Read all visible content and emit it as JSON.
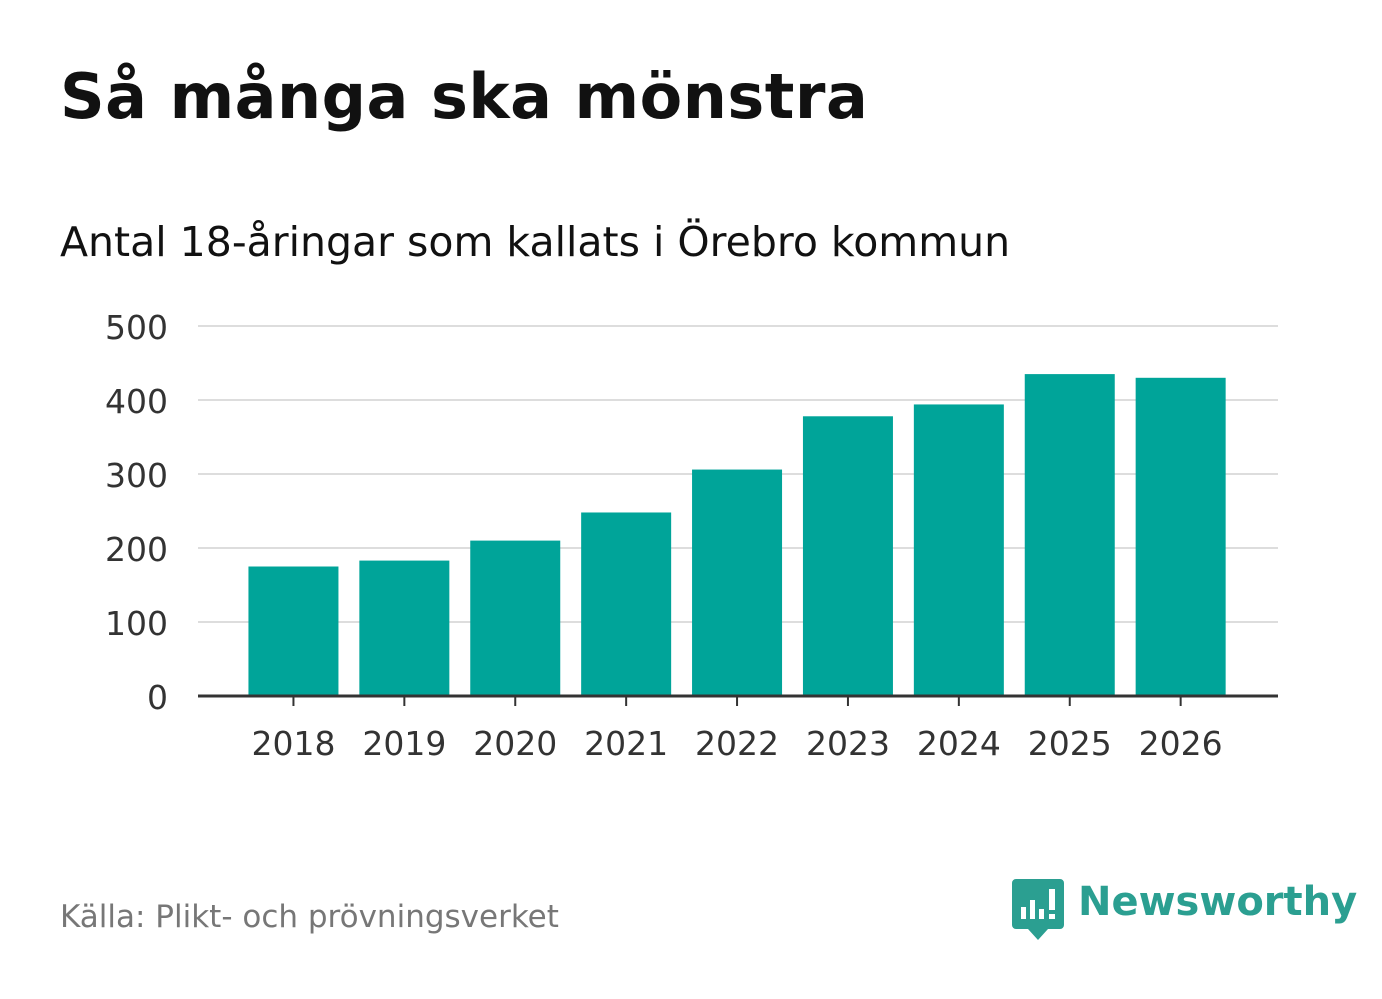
{
  "chart_data": {
    "type": "bar",
    "title": "Så många ska mönstra",
    "subtitle": "Antal 18-åringar som kallats i Örebro kommun",
    "categories": [
      "2018",
      "2019",
      "2020",
      "2021",
      "2022",
      "2023",
      "2024",
      "2025",
      "2026"
    ],
    "values": [
      175,
      183,
      210,
      248,
      306,
      378,
      394,
      435,
      430
    ],
    "ylim": [
      0,
      500
    ],
    "yticks": [
      0,
      100,
      200,
      300,
      400,
      500
    ],
    "xlabel": "",
    "ylabel": "",
    "grid": true,
    "bar_color": "#00a499"
  },
  "footer": {
    "source": "Källa: Plikt- och prövningsverket",
    "brand": "Newsworthy",
    "brand_icon": "newsworthy-logo-icon",
    "brand_color": "#2b9f91"
  }
}
